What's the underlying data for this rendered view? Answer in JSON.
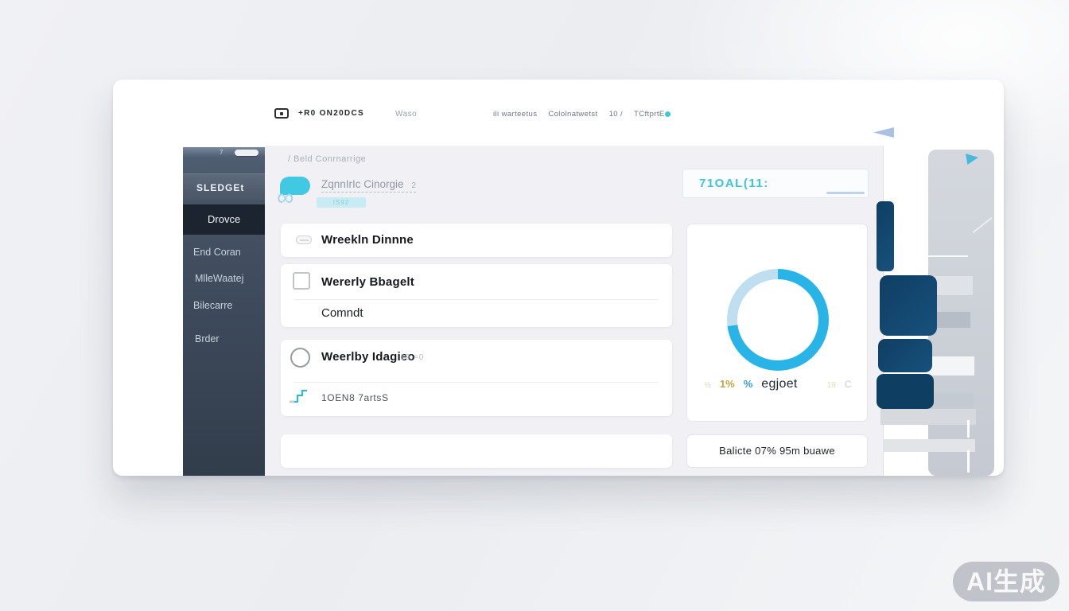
{
  "navbar": {
    "brand": "+R0 ON20DCS",
    "menu_center": "Waso",
    "menu_right": [
      "ili warteetus",
      "Cololnatwetst",
      "10 /",
      "TCftprtE"
    ]
  },
  "sidebar": {
    "handle_glyph": "7",
    "items": [
      "SLEDGEt",
      "Drovce",
      "End Coran",
      "MlleWaatej",
      "Bilecarre",
      "Brder"
    ]
  },
  "main": {
    "breadcrumb": "/  Beld Conrnarrige",
    "header": {
      "title": "ZqnnIrIc Cinorgie",
      "badge": "2",
      "chip": "IS92",
      "infinity": "∞"
    },
    "total_field": {
      "value": "71OAL(11:"
    },
    "cards": {
      "row1": {
        "title": "Wreekln Dinnne"
      },
      "row2": {
        "title": "Wererly Bbagelt",
        "subtitle": "Comndt"
      },
      "row3": {
        "title": "Weerlby Idagieo",
        "meta": "19 =0",
        "footer": "1OEN8 7artsS"
      }
    },
    "summary": "Balicte 07% 95m buawe"
  },
  "donut": {
    "type": "donut",
    "segments": [
      {
        "name": "primary",
        "value": 73,
        "color": "#29b4e8"
      },
      {
        "name": "remainder",
        "value": 27,
        "color": "#bfdff0"
      }
    ],
    "legend": [
      {
        "text": "½",
        "color": "#dbd3a8"
      },
      {
        "text": "1%",
        "color": "#c2a33c"
      },
      {
        "text": "%",
        "color": "#2f9fd6"
      },
      {
        "text": "egjoet",
        "color": "#24282e"
      },
      {
        "text": "19",
        "color": "#e6ddb0"
      },
      {
        "text": "C",
        "color": "#c6cbd1"
      }
    ]
  },
  "watermark": "AI生成",
  "colors": {
    "accent": "#3ac3dd",
    "sidebar_active": "#1c242f",
    "navy": "#134a72",
    "donut_primary": "#29b4e8"
  }
}
